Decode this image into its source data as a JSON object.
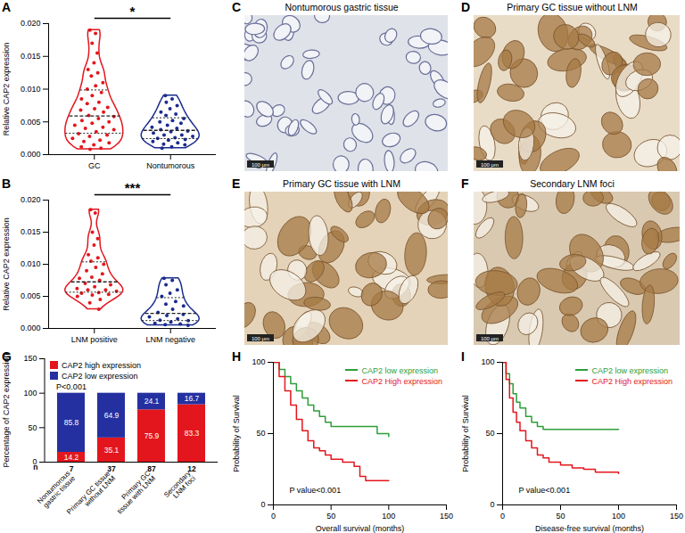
{
  "chart_data": [
    {
      "panel": "A",
      "type": "violin",
      "categories": [
        "GC",
        "Nontumorous"
      ],
      "colors": [
        "#e3161d",
        "#1a2b8f"
      ],
      "values": [
        [
          0.019,
          0.0185,
          0.017,
          0.0155,
          0.014,
          0.013,
          0.0125,
          0.012,
          0.011,
          0.0105,
          0.01,
          0.0095,
          0.009,
          0.0085,
          0.008,
          0.0078,
          0.0072,
          0.007,
          0.0068,
          0.0065,
          0.006,
          0.0058,
          0.0055,
          0.0052,
          0.005,
          0.0048,
          0.0045,
          0.0042,
          0.004,
          0.0038,
          0.0035,
          0.0032,
          0.003,
          0.0028,
          0.0025,
          0.0022,
          0.002,
          0.0018,
          0.0015,
          0.0012,
          0.001,
          0.0008
        ],
        [
          0.009,
          0.0085,
          0.008,
          0.0075,
          0.007,
          0.0065,
          0.0062,
          0.006,
          0.0055,
          0.0052,
          0.005,
          0.0048,
          0.0045,
          0.0042,
          0.004,
          0.0038,
          0.0036,
          0.0035,
          0.0033,
          0.003,
          0.003,
          0.0028,
          0.0026,
          0.0025,
          0.0023,
          0.0022,
          0.002,
          0.0018,
          0.0016,
          0.0015,
          0.0012,
          0.001
        ]
      ],
      "ylabel": "Relative CAP2 expression",
      "ylim": [
        0,
        0.02
      ],
      "yticks": [
        {
          "value": 0,
          "label": "0.000"
        },
        {
          "value": 0.005,
          "label": "0.005"
        },
        {
          "value": 0.01,
          "label": "0.010"
        },
        {
          "value": 0.015,
          "label": "0.015"
        },
        {
          "value": 0.02,
          "label": "0.020"
        }
      ],
      "annotation": "*"
    },
    {
      "panel": "B",
      "type": "violin",
      "categories": [
        "LNM positive",
        "LNM negative"
      ],
      "colors": [
        "#e3161d",
        "#1a2b8f"
      ],
      "values": [
        [
          0.0185,
          0.018,
          0.015,
          0.014,
          0.013,
          0.0115,
          0.011,
          0.0105,
          0.01,
          0.0095,
          0.009,
          0.0085,
          0.008,
          0.0078,
          0.0075,
          0.007,
          0.0068,
          0.0065,
          0.0062,
          0.006,
          0.006,
          0.0058,
          0.0056,
          0.0055,
          0.0053,
          0.0052,
          0.005,
          0.0045,
          0.004,
          0.003
        ],
        [
          0.0078,
          0.0075,
          0.0068,
          0.006,
          0.0055,
          0.005,
          0.0042,
          0.0038,
          0.0035,
          0.003,
          0.0025,
          0.0022,
          0.002,
          0.0018,
          0.0015,
          0.0013,
          0.0012,
          0.001,
          0.0008,
          0.0007,
          0.0006,
          0.0005
        ]
      ],
      "ylabel": "Relative CAP2 expression",
      "ylim": [
        0,
        0.02
      ],
      "yticks": [
        {
          "value": 0,
          "label": "0.000"
        },
        {
          "value": 0.005,
          "label": "0.005"
        },
        {
          "value": 0.01,
          "label": "0.010"
        },
        {
          "value": 0.015,
          "label": "0.015"
        },
        {
          "value": 0.02,
          "label": "0.020"
        }
      ],
      "annotation": "***"
    },
    {
      "panel": "G",
      "type": "bar",
      "stacked": true,
      "data_labels": true,
      "legend": "upper left",
      "categories": [
        "Nontumorous gastric tissue",
        "Primary GC tissue without LNM",
        "Primary GC tissue with LNM",
        "Secondary LNM foci"
      ],
      "series": [
        {
          "name": "CAP2 high expression",
          "color": "#e3161d",
          "values": [
            14.2,
            35.1,
            75.9,
            83.3
          ]
        },
        {
          "name": "CAP2 low expression",
          "color": "#2530a0",
          "values": [
            85.8,
            64.9,
            24.1,
            16.7
          ]
        }
      ],
      "ylabel": "Percentage of CAP2 expression",
      "ylim": [
        0,
        150
      ],
      "yticks": [
        0,
        50,
        100,
        150
      ],
      "annotation": "P<0.001",
      "n_label": "n",
      "n": [
        7,
        37,
        87,
        12
      ]
    },
    {
      "panel": "H",
      "type": "line",
      "line_style": "step",
      "legend": "upper right",
      "series": [
        {
          "name": "CAP2 low expression",
          "color": "#2e9e3a",
          "x": [
            0,
            5,
            10,
            15,
            20,
            25,
            30,
            35,
            40,
            45,
            50,
            60,
            70,
            85,
            90,
            100
          ],
          "values": [
            100,
            95,
            90,
            85,
            80,
            75,
            70,
            66,
            62,
            58,
            55,
            55,
            55,
            55,
            50,
            48
          ]
        },
        {
          "name": "CAP2 High expression",
          "color": "#e3161d",
          "x": [
            0,
            5,
            10,
            15,
            20,
            25,
            30,
            35,
            40,
            45,
            50,
            60,
            70,
            75,
            80,
            100
          ],
          "values": [
            100,
            90,
            80,
            70,
            60,
            52,
            45,
            40,
            38,
            35,
            32,
            30,
            27,
            20,
            17,
            17
          ]
        }
      ],
      "xlabel": "Overall survival (months)",
      "ylabel": "Probability of Survival",
      "xlim": [
        0,
        150
      ],
      "xticks": [
        0,
        50,
        100,
        150
      ],
      "ylim": [
        0,
        100
      ],
      "yticks": [
        0,
        50,
        100
      ],
      "annotation": "P value<0.001"
    },
    {
      "panel": "I",
      "type": "line",
      "line_style": "step",
      "legend": "upper right",
      "series": [
        {
          "name": "CAP2 low expression",
          "color": "#2e9e3a",
          "x": [
            0,
            3,
            6,
            9,
            12,
            15,
            20,
            25,
            30,
            35,
            40,
            100
          ],
          "values": [
            100,
            92,
            85,
            78,
            72,
            68,
            62,
            58,
            55,
            53,
            53,
            53
          ]
        },
        {
          "name": "CAP2 High expression",
          "color": "#e3161d",
          "x": [
            0,
            3,
            6,
            9,
            12,
            15,
            20,
            25,
            30,
            35,
            40,
            50,
            60,
            70,
            80,
            100
          ],
          "values": [
            100,
            88,
            75,
            65,
            58,
            52,
            45,
            40,
            35,
            33,
            30,
            28,
            26,
            25,
            23,
            22
          ]
        }
      ],
      "xlabel": "Disease-free survival (months)",
      "ylabel": "Probability of Survival",
      "xlim": [
        0,
        150
      ],
      "xticks": [
        0,
        50,
        100,
        150
      ],
      "ylim": [
        0,
        100
      ],
      "yticks": [
        0,
        50,
        100
      ],
      "annotation": "P value<0.001"
    }
  ],
  "images": [
    {
      "panel": "C",
      "title": "Nontumorous gastric tissue",
      "scale_bar": "100 μm"
    },
    {
      "panel": "D",
      "title": "Primary GC tissue without LNM",
      "scale_bar": "100 μm"
    },
    {
      "panel": "E",
      "title": "Primary GC tissue with LNM",
      "scale_bar": "100 μm"
    },
    {
      "panel": "F",
      "title": "Secondary LNM foci",
      "scale_bar": "100 μm"
    }
  ]
}
